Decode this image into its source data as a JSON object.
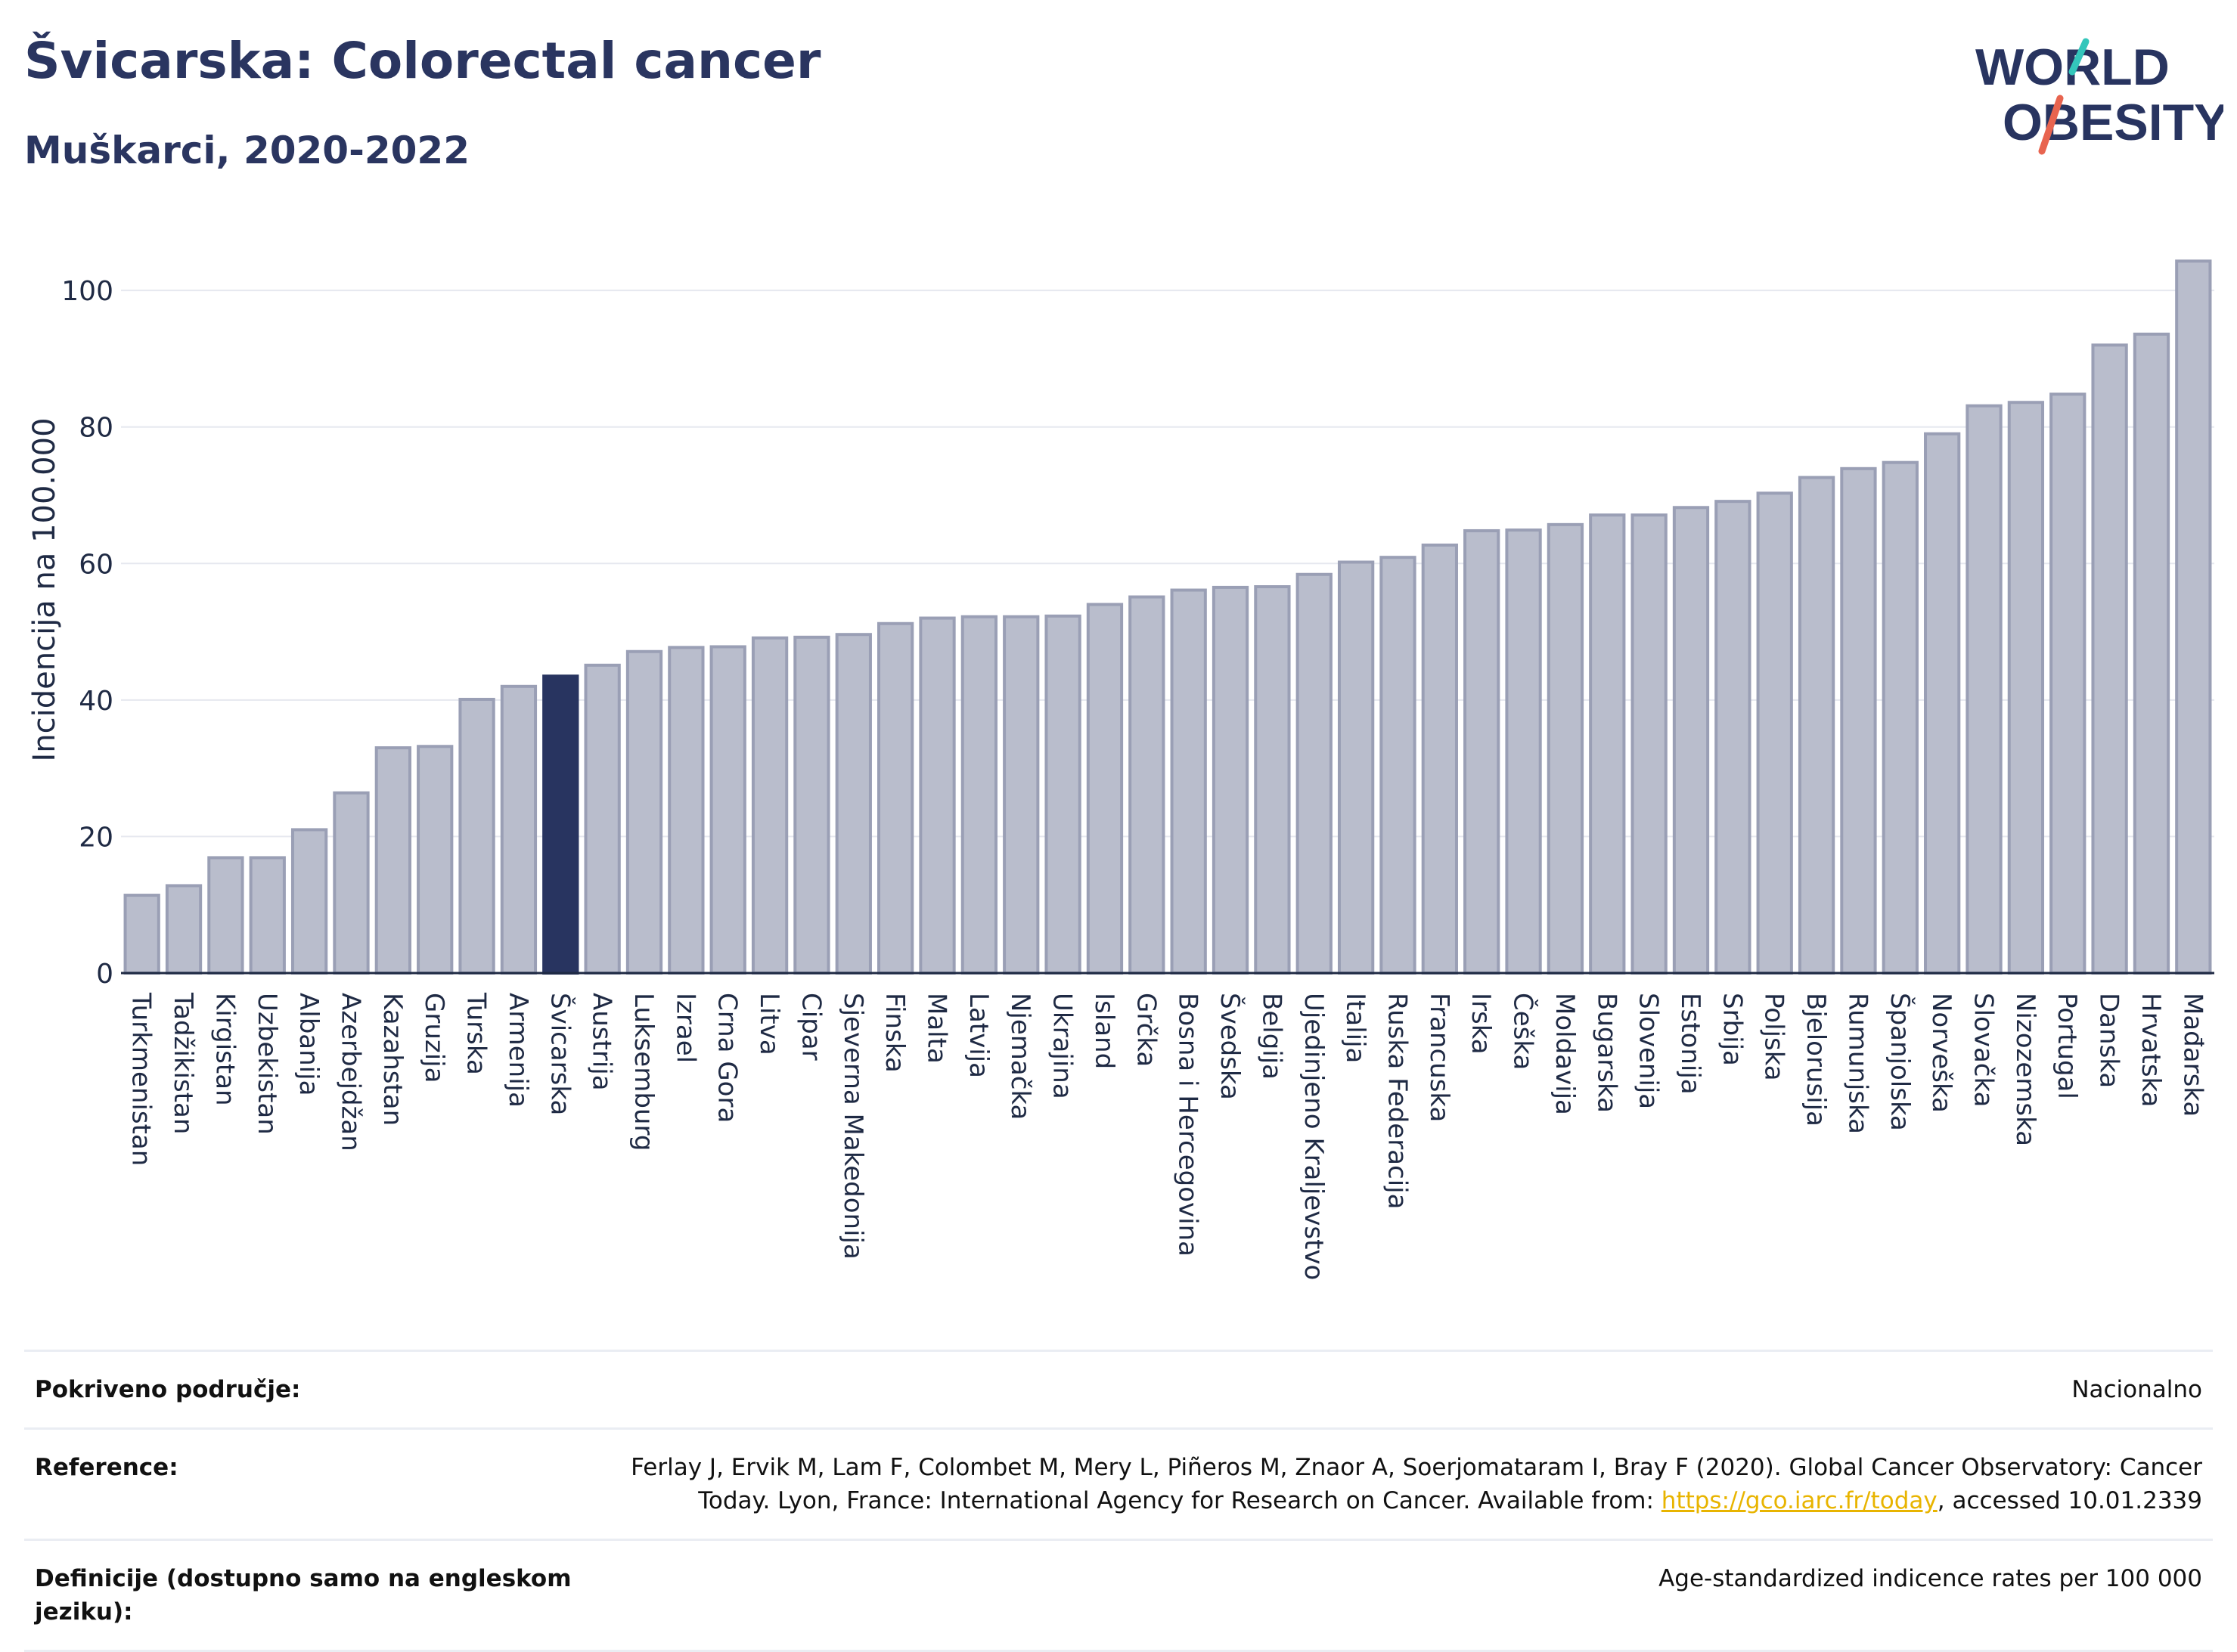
{
  "header": {
    "title": "Švicarska: Colorectal cancer",
    "subtitle": "Muškarci, 2020-2022",
    "logo_line1": "WORLD",
    "logo_line2": "OBESITY"
  },
  "colors": {
    "bar": "#b9bdcc",
    "bar_stroke": "#9a9fb5",
    "highlight": "#283460",
    "title": "#2a3560",
    "grid": "#e6e8ef",
    "logo_teal": "#34c6bb",
    "logo_coral": "#e8644f",
    "link": "#e8b400"
  },
  "chart_data": {
    "type": "bar",
    "ylabel": "Incidencija na 100.000",
    "ylim": [
      0,
      106
    ],
    "yticks": [
      0,
      20,
      40,
      60,
      80,
      100
    ],
    "highlight": "Švicarska",
    "grid": true,
    "categories": [
      "Turkmenistan",
      "Tadžikistan",
      "Kirgistan",
      "Uzbekistan",
      "Albanija",
      "Azerbejdžan",
      "Kazahstan",
      "Gruzija",
      "Turska",
      "Armenija",
      "Švicarska",
      "Austrija",
      "Luksemburg",
      "Izrael",
      "Crna Gora",
      "Litva",
      "Cipar",
      "Sjeverna Makedonija",
      "Finska",
      "Malta",
      "Latvija",
      "Njemačka",
      "Ukrajina",
      "Island",
      "Grčka",
      "Bosna i Hercegovina",
      "Švedska",
      "Belgija",
      "Ujedinjeno Kraljevstvo",
      "Italija",
      "Ruska Federacija",
      "Francuska",
      "Irska",
      "Češka",
      "Moldavija",
      "Bugarska",
      "Slovenija",
      "Estonija",
      "Srbija",
      "Poljska",
      "Bjelorusija",
      "Rumunjska",
      "Španjolska",
      "Norveška",
      "Slovačka",
      "Nizozemska",
      "Portugal",
      "Danska",
      "Hrvatska",
      "Mađarska"
    ],
    "values": [
      11.4,
      12.8,
      16.9,
      16.9,
      21.0,
      26.4,
      33.0,
      33.2,
      40.1,
      42.0,
      43.5,
      45.1,
      47.1,
      47.7,
      47.8,
      49.1,
      49.2,
      49.6,
      51.2,
      52.0,
      52.2,
      52.2,
      52.3,
      54.0,
      55.1,
      56.1,
      56.5,
      56.6,
      58.4,
      60.2,
      60.9,
      62.7,
      64.8,
      64.9,
      65.7,
      67.1,
      67.1,
      68.2,
      69.1,
      70.3,
      72.6,
      73.9,
      74.8,
      79.0,
      83.1,
      83.6,
      84.8,
      92.0,
      93.6,
      104.3
    ]
  },
  "footer": {
    "coverage_label": "Pokriveno područje:",
    "coverage_value": "Nacionalno",
    "reference_label": "Reference:",
    "reference_text": "Ferlay J, Ervik M, Lam F, Colombet M, Mery L, Piñeros M, Znaor A, Soerjomataram I, Bray F (2020). Global Cancer Observatory: Cancer Today. Lyon, France: International Agency for Research on Cancer. Available from: ",
    "reference_link": "https://gco.iarc.fr/today",
    "reference_suffix": ", accessed 10.01.2339",
    "definitions_label": "Definicije (dostupno samo na engleskom jeziku):",
    "definitions_value": "Age-standardized indicence rates per 100 000"
  }
}
